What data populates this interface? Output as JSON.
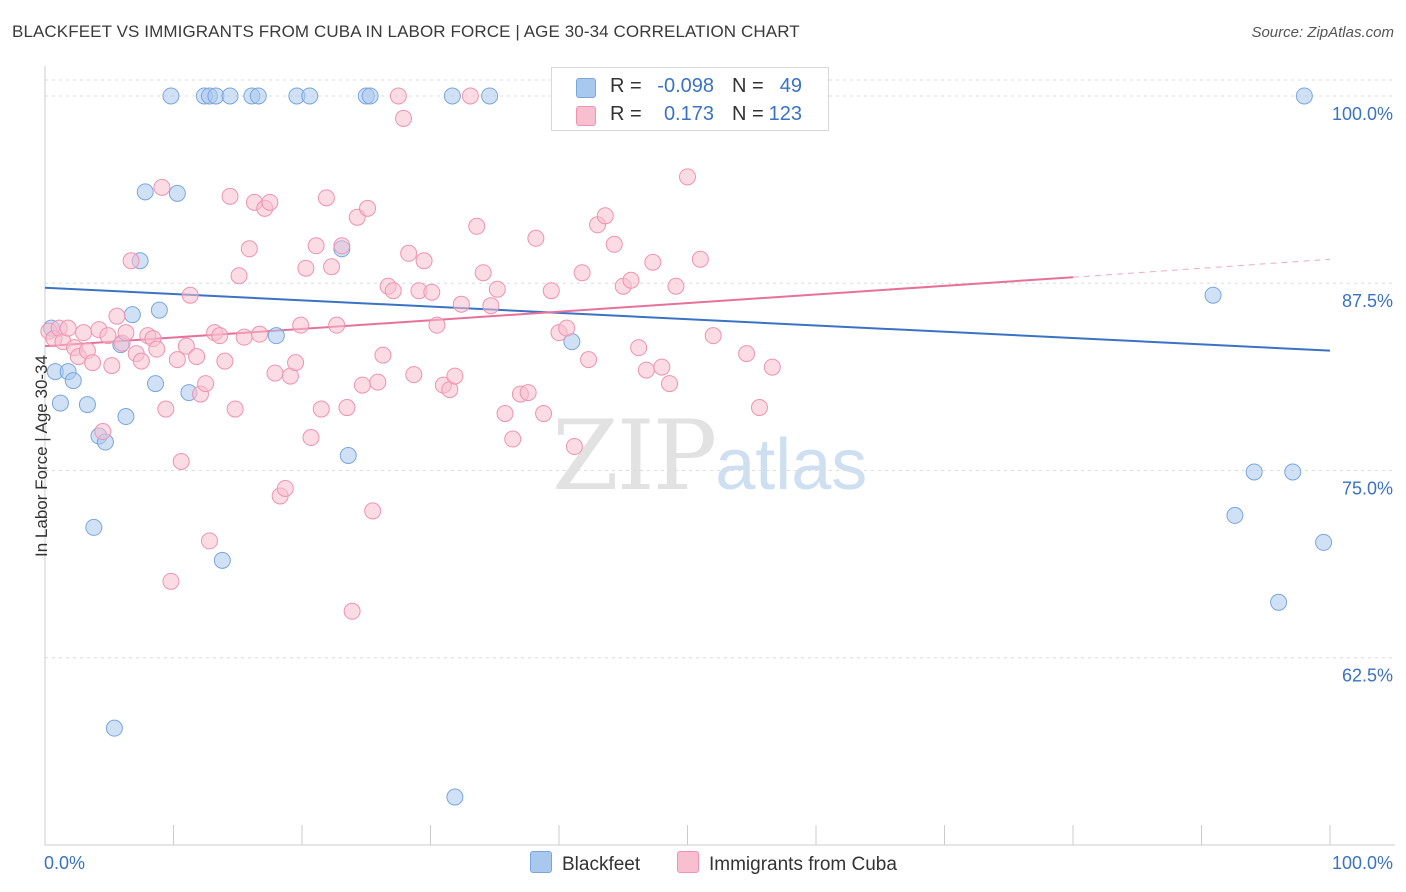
{
  "title": "BLACKFEET VS IMMIGRANTS FROM CUBA IN LABOR FORCE | AGE 30-34 CORRELATION CHART",
  "source": "Source: ZipAtlas.com",
  "watermark": {
    "zip": "ZIP",
    "atlas": "atlas"
  },
  "legend": {
    "r_label": "R =",
    "n_label": "N =",
    "rows": [
      {
        "r": "-0.098",
        "n": "49",
        "color": "#a9c8ee",
        "border": "#7aa6de"
      },
      {
        "r": "0.173",
        "n": "123",
        "color": "#f7bfd0",
        "border": "#ef93b0"
      }
    ]
  },
  "chart_data": {
    "type": "scatter",
    "title": "BLACKFEET VS IMMIGRANTS FROM CUBA IN LABOR FORCE | AGE 30-34 CORRELATION CHART",
    "xlabel": "",
    "ylabel": "In Labor Force | Age 30-34",
    "xlim": [
      0,
      100
    ],
    "ylim": [
      50,
      102
    ],
    "x_tick_labels": [
      "0.0%",
      "100.0%"
    ],
    "y_ticks": [
      100.0,
      87.5,
      75.0,
      62.5
    ],
    "y_tick_labels": [
      "100.0%",
      "87.5%",
      "75.0%",
      "62.5%"
    ],
    "grid": true,
    "legend_position": "top-center",
    "series": [
      {
        "name": "Blackfeet",
        "color": "#7aa6de",
        "fill": "#a9c8ee",
        "line_color": "#3a72c4",
        "trend": {
          "x": [
            0,
            100
          ],
          "y": [
            87.2,
            83.0
          ],
          "dashed_from": null
        },
        "points": [
          [
            0.5,
            84.5
          ],
          [
            0.8,
            81.6
          ],
          [
            1.2,
            79.5
          ],
          [
            1.8,
            81.6
          ],
          [
            2.2,
            81.0
          ],
          [
            3.3,
            79.4
          ],
          [
            3.8,
            71.2
          ],
          [
            4.2,
            77.3
          ],
          [
            4.7,
            76.9
          ],
          [
            5.4,
            57.8
          ],
          [
            5.9,
            83.4
          ],
          [
            6.3,
            78.6
          ],
          [
            6.8,
            85.4
          ],
          [
            7.4,
            89.0
          ],
          [
            7.8,
            93.6
          ],
          [
            8.6,
            80.8
          ],
          [
            8.9,
            85.7
          ],
          [
            9.8,
            100
          ],
          [
            10.3,
            93.5
          ],
          [
            11.2,
            80.2
          ],
          [
            12.4,
            100
          ],
          [
            12.8,
            100
          ],
          [
            13.3,
            100
          ],
          [
            13.8,
            69.0
          ],
          [
            14.4,
            100
          ],
          [
            16.1,
            100
          ],
          [
            16.6,
            100
          ],
          [
            18.0,
            84.0
          ],
          [
            19.6,
            100
          ],
          [
            20.6,
            100
          ],
          [
            23.1,
            89.8
          ],
          [
            23.6,
            76.0
          ],
          [
            25.0,
            100
          ],
          [
            25.3,
            100
          ],
          [
            31.7,
            100
          ],
          [
            31.9,
            53.2
          ],
          [
            34.6,
            100
          ],
          [
            41.0,
            83.6
          ],
          [
            90.9,
            86.7
          ],
          [
            92.6,
            72.0
          ],
          [
            94.1,
            74.9
          ],
          [
            96.0,
            66.2
          ],
          [
            97.1,
            74.9
          ],
          [
            98.0,
            100
          ],
          [
            99.5,
            70.2
          ]
        ]
      },
      {
        "name": "Immigrants from Cuba",
        "color": "#ef93b0",
        "fill": "#f7bfd0",
        "line_color": "#e6729a",
        "trend": {
          "x": [
            0,
            80,
            100
          ],
          "y": [
            83.3,
            87.9,
            89.1
          ],
          "dashed_from": 80
        },
        "points": [
          [
            0.3,
            84.3
          ],
          [
            0.7,
            83.8
          ],
          [
            1.1,
            84.5
          ],
          [
            1.4,
            83.6
          ],
          [
            1.8,
            84.5
          ],
          [
            2.3,
            83.2
          ],
          [
            2.6,
            82.6
          ],
          [
            3.0,
            84.2
          ],
          [
            3.3,
            83.0
          ],
          [
            3.7,
            82.2
          ],
          [
            4.2,
            84.4
          ],
          [
            4.5,
            77.6
          ],
          [
            4.9,
            84.0
          ],
          [
            5.2,
            82.0
          ],
          [
            5.6,
            85.3
          ],
          [
            6.0,
            83.5
          ],
          [
            6.3,
            84.2
          ],
          [
            6.7,
            89.0
          ],
          [
            7.1,
            82.8
          ],
          [
            7.5,
            82.3
          ],
          [
            8.0,
            84.0
          ],
          [
            8.4,
            83.8
          ],
          [
            8.7,
            83.1
          ],
          [
            9.1,
            93.9
          ],
          [
            9.4,
            79.1
          ],
          [
            9.8,
            67.6
          ],
          [
            10.3,
            82.4
          ],
          [
            10.6,
            75.6
          ],
          [
            11.0,
            83.3
          ],
          [
            11.3,
            86.7
          ],
          [
            11.8,
            82.6
          ],
          [
            12.1,
            80.1
          ],
          [
            12.5,
            80.8
          ],
          [
            12.8,
            70.3
          ],
          [
            13.2,
            84.2
          ],
          [
            13.6,
            84.0
          ],
          [
            14.0,
            82.3
          ],
          [
            14.4,
            93.3
          ],
          [
            14.8,
            79.1
          ],
          [
            15.1,
            88.0
          ],
          [
            15.5,
            83.9
          ],
          [
            15.9,
            89.8
          ],
          [
            16.3,
            92.9
          ],
          [
            16.7,
            84.1
          ],
          [
            17.1,
            92.5
          ],
          [
            17.5,
            92.9
          ],
          [
            17.9,
            81.5
          ],
          [
            18.3,
            73.3
          ],
          [
            18.7,
            73.8
          ],
          [
            19.1,
            81.3
          ],
          [
            19.5,
            82.2
          ],
          [
            19.9,
            84.7
          ],
          [
            20.3,
            88.5
          ],
          [
            20.7,
            77.2
          ],
          [
            21.1,
            90.0
          ],
          [
            21.5,
            79.1
          ],
          [
            21.9,
            93.2
          ],
          [
            22.3,
            88.6
          ],
          [
            22.7,
            84.7
          ],
          [
            23.1,
            90.0
          ],
          [
            23.5,
            79.2
          ],
          [
            23.9,
            65.6
          ],
          [
            24.3,
            91.9
          ],
          [
            24.7,
            80.7
          ],
          [
            25.1,
            92.5
          ],
          [
            25.5,
            72.3
          ],
          [
            25.9,
            80.9
          ],
          [
            26.3,
            82.7
          ],
          [
            26.7,
            87.3
          ],
          [
            27.1,
            87.0
          ],
          [
            27.5,
            100
          ],
          [
            27.9,
            98.5
          ],
          [
            28.3,
            89.5
          ],
          [
            28.7,
            81.4
          ],
          [
            29.1,
            87.0
          ],
          [
            29.5,
            89.0
          ],
          [
            30.1,
            86.9
          ],
          [
            30.5,
            84.7
          ],
          [
            31.0,
            80.7
          ],
          [
            31.5,
            80.4
          ],
          [
            31.9,
            81.3
          ],
          [
            32.4,
            86.1
          ],
          [
            33.1,
            100
          ],
          [
            33.6,
            91.3
          ],
          [
            34.1,
            88.2
          ],
          [
            34.7,
            86.0
          ],
          [
            35.2,
            87.1
          ],
          [
            35.8,
            78.8
          ],
          [
            36.4,
            77.1
          ],
          [
            37.0,
            80.1
          ],
          [
            37.6,
            80.2
          ],
          [
            38.2,
            90.5
          ],
          [
            38.8,
            78.8
          ],
          [
            39.4,
            87.0
          ],
          [
            40.0,
            84.2
          ],
          [
            40.6,
            84.5
          ],
          [
            41.2,
            76.6
          ],
          [
            41.8,
            88.2
          ],
          [
            42.3,
            82.4
          ],
          [
            43.0,
            91.4
          ],
          [
            43.6,
            92.0
          ],
          [
            44.3,
            90.1
          ],
          [
            45.0,
            87.3
          ],
          [
            45.6,
            87.7
          ],
          [
            46.2,
            83.2
          ],
          [
            46.8,
            81.7
          ],
          [
            47.3,
            88.9
          ],
          [
            48.0,
            81.9
          ],
          [
            48.6,
            80.8
          ],
          [
            49.1,
            87.3
          ],
          [
            50.0,
            94.6
          ],
          [
            51.0,
            89.1
          ],
          [
            52.0,
            84.0
          ],
          [
            54.6,
            82.8
          ],
          [
            55.6,
            79.2
          ],
          [
            56.6,
            81.9
          ]
        ]
      }
    ]
  },
  "bottom_legend": [
    {
      "label": "Blackfeet",
      "color": "#a9c8ee",
      "border": "#7aa6de"
    },
    {
      "label": "Immigrants from Cuba",
      "color": "#f7bfd0",
      "border": "#ef93b0"
    }
  ]
}
